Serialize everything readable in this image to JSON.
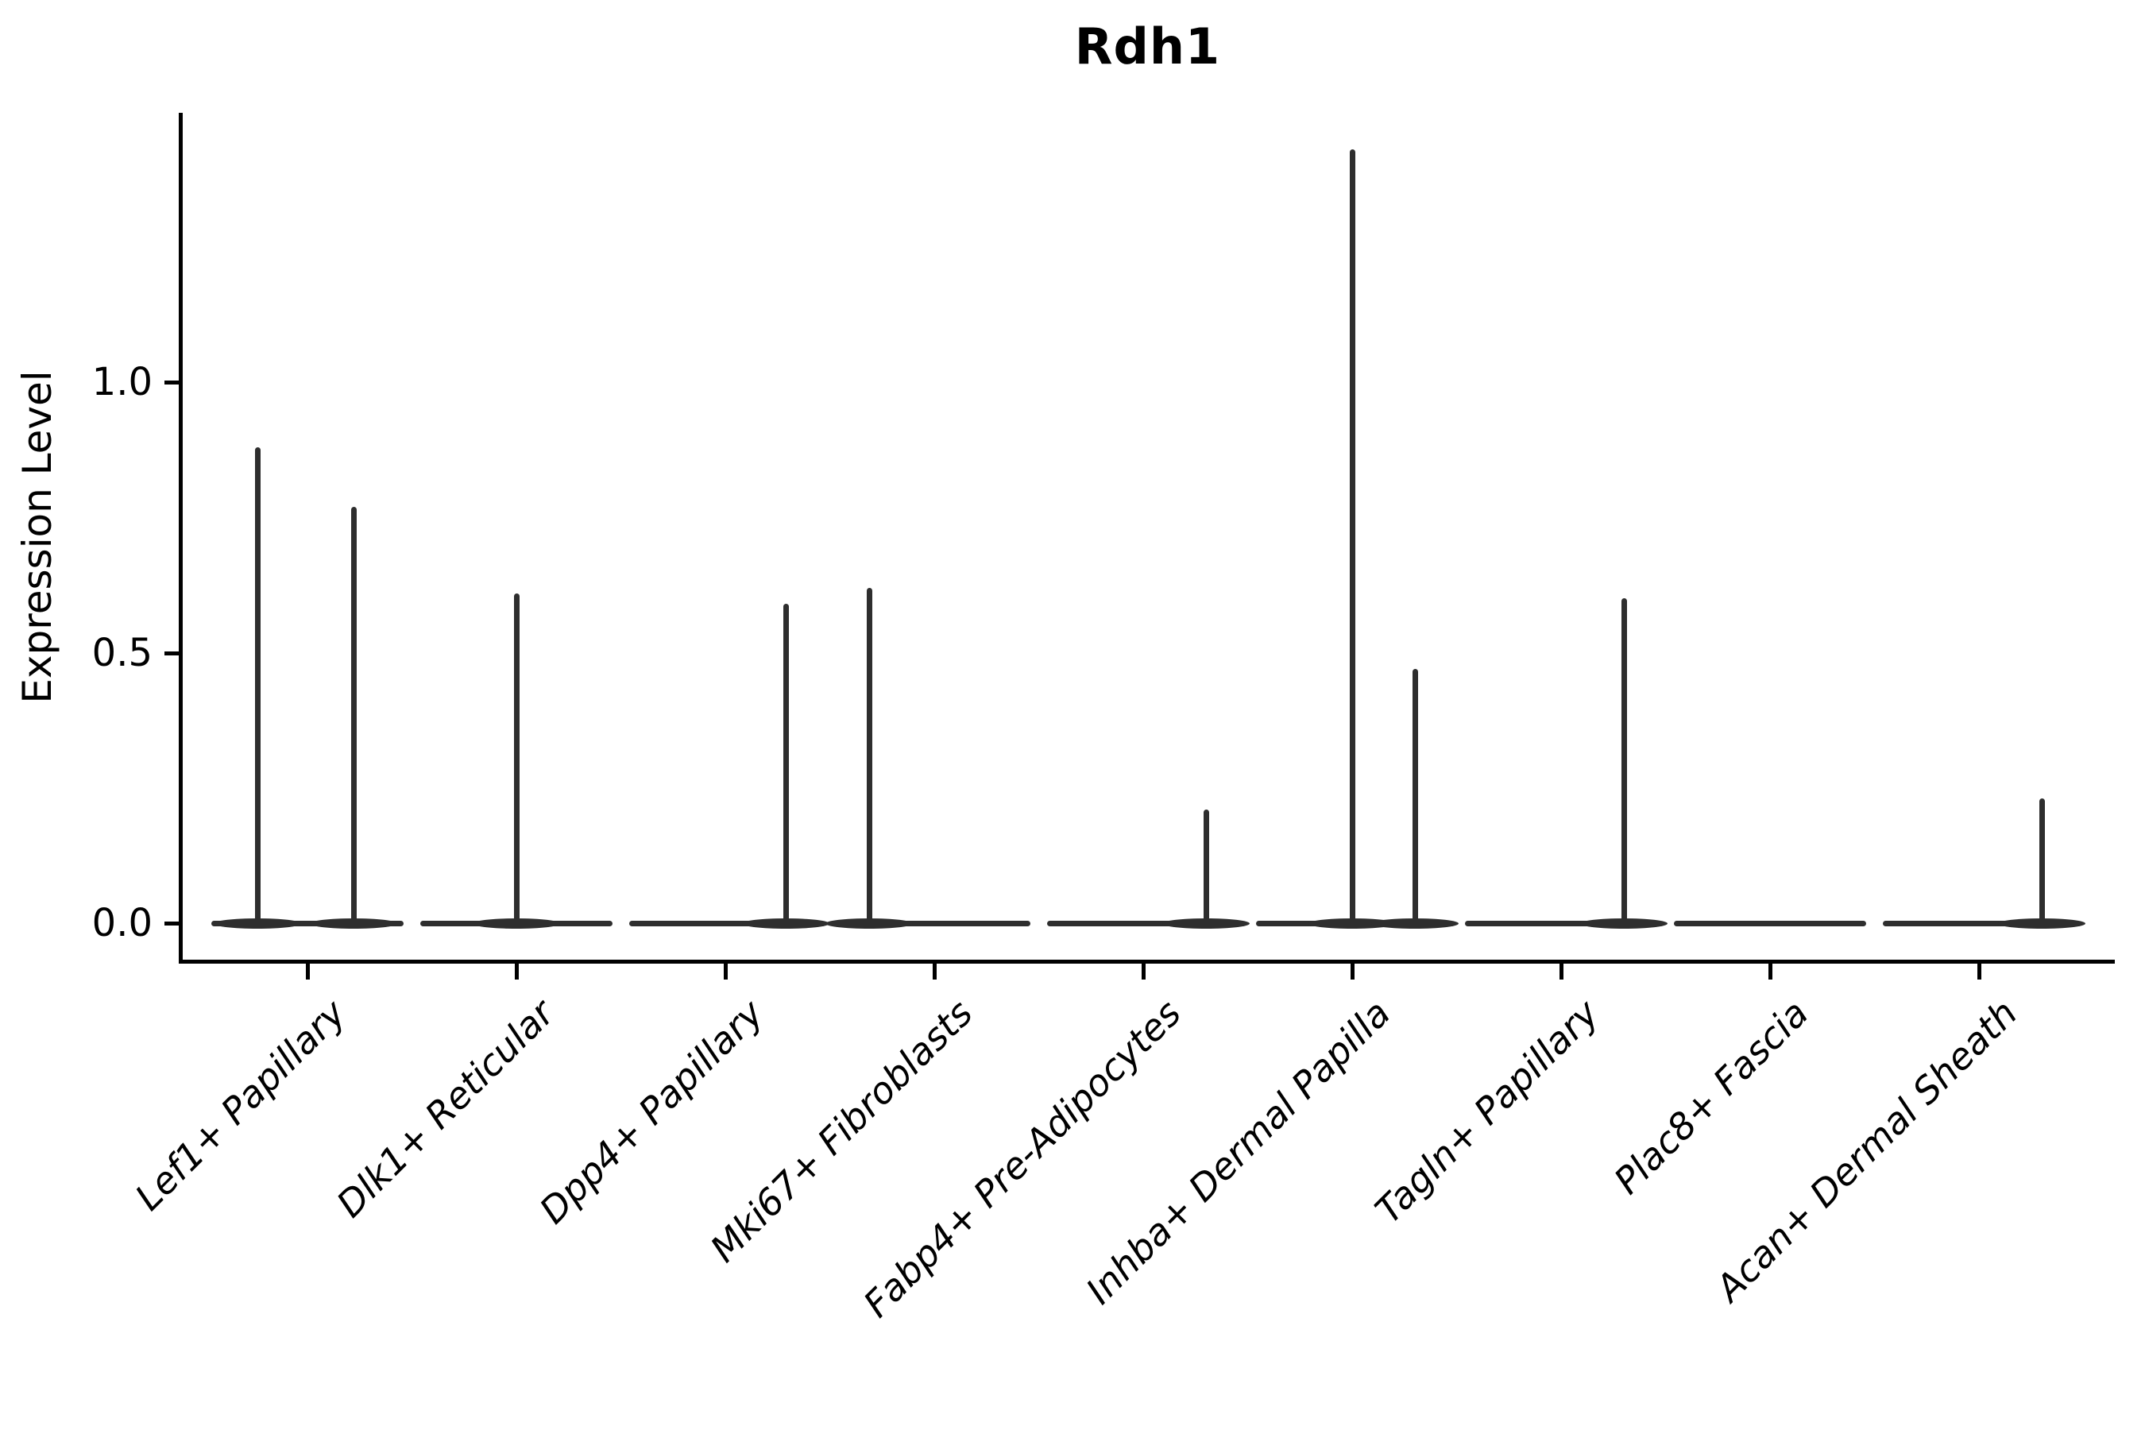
{
  "chart_data": {
    "type": "violin",
    "title": "Rdh1",
    "ylabel": "Expression Level",
    "xlabel": "",
    "ytick_labels": [
      "0.0",
      "0.5",
      "1.0"
    ],
    "ytick_values": [
      0.0,
      0.5,
      1.0
    ],
    "ylim": [
      -0.07,
      1.5
    ],
    "legend": "none",
    "grid": false,
    "violin_color": "#2e2e2e",
    "axis_color": "#000000",
    "base_halfwidth": 0.46,
    "categories": [
      "Lef1+ Papillary",
      "Dlk1+ Reticular",
      "Dpp4+ Papillary",
      "Mki67+ Fibroblasts",
      "Fabp4+ Pre-Adipocytes",
      "Inhba+ Dermal Papilla",
      "Tagln+ Papillary",
      "Plac8+ Fascia",
      "Acan+ Dermal Sheath"
    ],
    "violins": [
      {
        "category": "Lef1+ Papillary",
        "spikes": [
          {
            "x_offset": -0.24,
            "max_expression": 0.88
          },
          {
            "x_offset": 0.22,
            "max_expression": 0.77
          }
        ]
      },
      {
        "category": "Dlk1+ Reticular",
        "spikes": [
          {
            "x_offset": 0.0,
            "max_expression": 0.61
          }
        ]
      },
      {
        "category": "Dpp4+ Papillary",
        "spikes": [
          {
            "x_offset": 0.29,
            "max_expression": 0.59
          }
        ]
      },
      {
        "category": "Mki67+ Fibroblasts",
        "spikes": [
          {
            "x_offset": -0.31,
            "max_expression": 0.62
          }
        ]
      },
      {
        "category": "Fabp4+ Pre-Adipocytes",
        "spikes": [
          {
            "x_offset": 0.3,
            "max_expression": 0.21
          }
        ]
      },
      {
        "category": "Inhba+ Dermal Papilla",
        "spikes": [
          {
            "x_offset": 0.0,
            "max_expression": 1.43
          },
          {
            "x_offset": 0.3,
            "max_expression": 0.47
          }
        ]
      },
      {
        "category": "Tagln+ Papillary",
        "spikes": [
          {
            "x_offset": 0.3,
            "max_expression": 0.6
          }
        ]
      },
      {
        "category": "Plac8+ Fascia",
        "spikes": []
      },
      {
        "category": "Acan+ Dermal Sheath",
        "spikes": [
          {
            "x_offset": 0.3,
            "max_expression": 0.23
          }
        ]
      }
    ]
  }
}
